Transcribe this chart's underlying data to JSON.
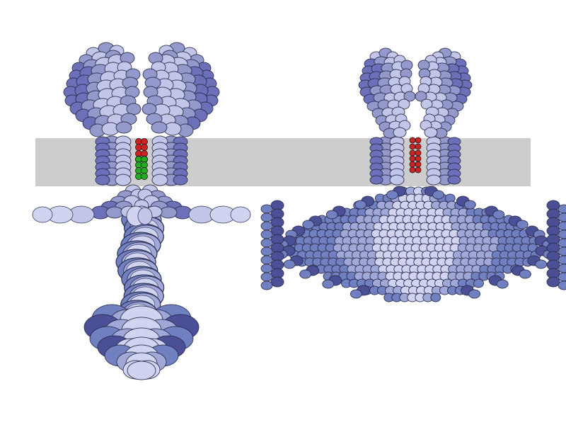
{
  "background_color": "#ffffff",
  "membrane_color": "#c8c8c8",
  "membrane_alpha": 0.9,
  "protein_color_light": "#c2c6e8",
  "protein_color_mid": "#9499cc",
  "protein_color_dark": "#6b70b8",
  "protein_color_vdark": "#4a4f96",
  "protein_outline": "#2a2a4a",
  "cytoplasm_light": "#d0d4f0",
  "cytoplasm_mid": "#a0a8d8",
  "cytoplasm_dark": "#7080c0",
  "red_atom_color": "#cc2222",
  "green_atom_color": "#22aa22",
  "figsize": [
    8.0,
    6.0
  ],
  "dpi": 100
}
